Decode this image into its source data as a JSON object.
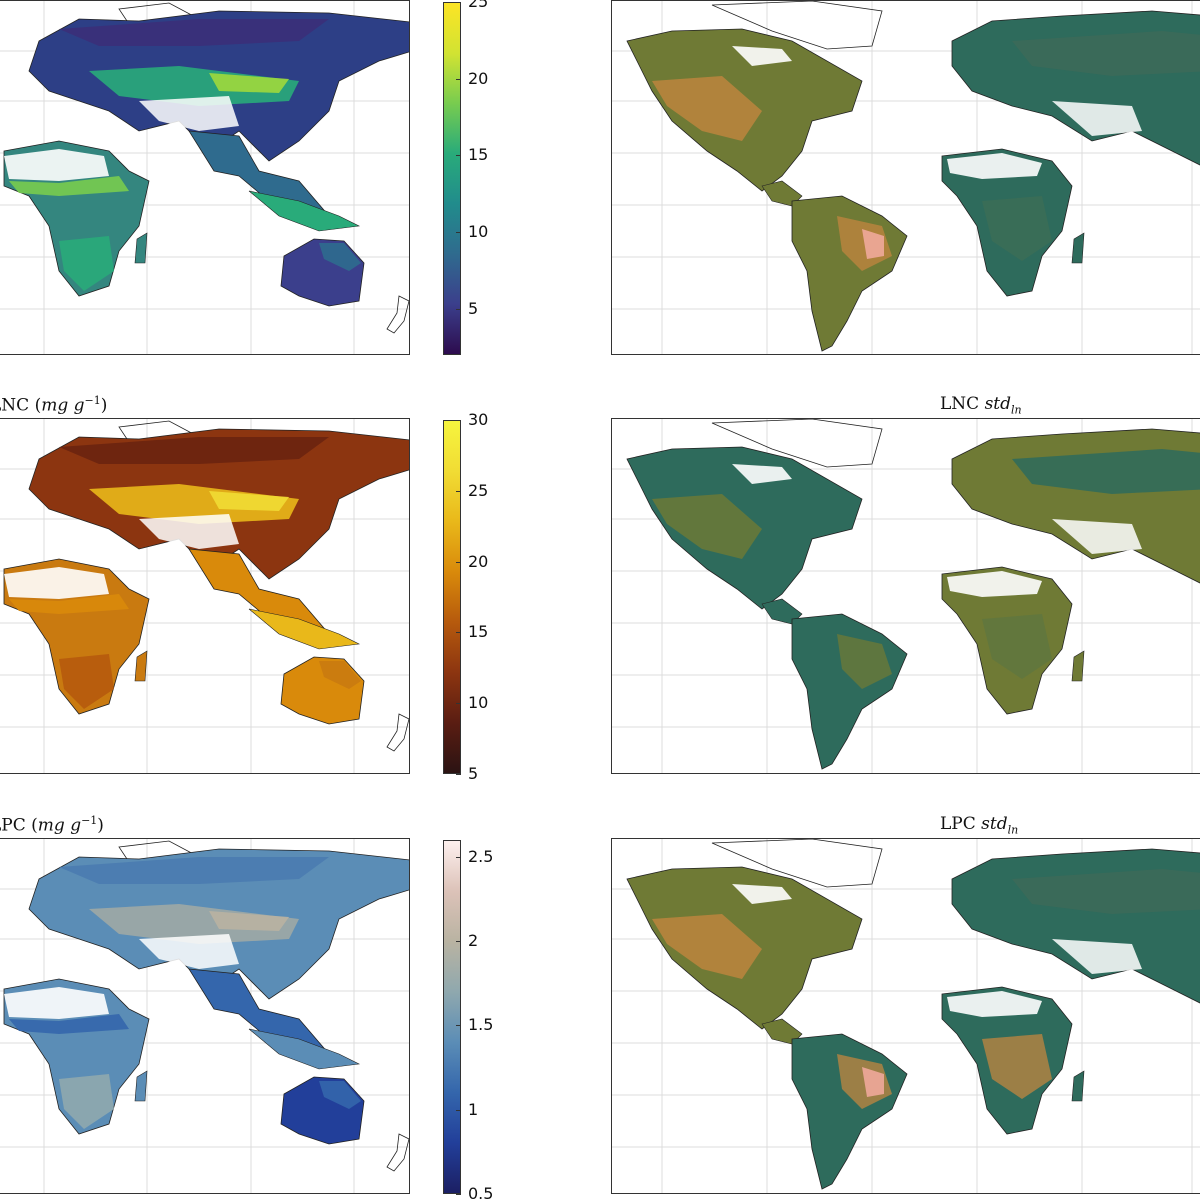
{
  "panels": [
    {
      "id": "lma",
      "title_prefix": "",
      "title_var": "",
      "colormap": [
        "#2d0c4e",
        "#3b3f8c",
        "#2f6b8e",
        "#218c8c",
        "#29ab7a",
        "#78cc4f",
        "#d2e332",
        "#fce425"
      ],
      "ticks": [
        "25",
        "20",
        "15",
        "10",
        "5"
      ],
      "tick_values": [
        25,
        20,
        15,
        10,
        5
      ],
      "range": [
        2,
        25
      ]
    },
    {
      "id": "lma-std",
      "title_prefix": "",
      "title_var": "",
      "colormap": [],
      "ticks": [],
      "tick_values": [],
      "range": []
    },
    {
      "id": "lnc",
      "title_prefix": "LNC (",
      "title_var": "mg g",
      "title_sup": "−1",
      "title_suffix": ")",
      "colormap": [
        "#2b1313",
        "#5a1d12",
        "#8c3510",
        "#b65a0d",
        "#d98a0b",
        "#e9b81a",
        "#f1dc34",
        "#f6f53e"
      ],
      "ticks": [
        "30",
        "25",
        "20",
        "15",
        "10",
        "5"
      ],
      "tick_values": [
        30,
        25,
        20,
        15,
        10,
        5
      ],
      "range": [
        5,
        30
      ]
    },
    {
      "id": "lnc-std",
      "title_prefix": "LNC ",
      "title_var": "std",
      "title_sub": "ln",
      "colormap": [],
      "ticks": [],
      "tick_values": [],
      "range": []
    },
    {
      "id": "lpc",
      "title_prefix": "LPC (",
      "title_var": "mg g",
      "title_sup": "−1",
      "title_suffix": ")",
      "colormap": [
        "#1c1f63",
        "#223f9a",
        "#3466ac",
        "#5b8db6",
        "#8fa8ae",
        "#b9b3a2",
        "#dcc2b8",
        "#fdf0ee"
      ],
      "ticks": [
        "2.5",
        "2",
        "1.5",
        "1",
        "0.5"
      ],
      "tick_values": [
        2.5,
        2,
        1.5,
        1,
        0.5
      ],
      "range": [
        0.5,
        2.6
      ]
    },
    {
      "id": "lpc-std",
      "title_prefix": "LPC ",
      "title_var": "std",
      "title_sub": "ln",
      "colormap": [],
      "ticks": [],
      "tick_values": [],
      "range": []
    }
  ],
  "colors": {
    "std_green": "#2e6b5c",
    "std_olive": "#6f7a35",
    "std_orange": "#c2863f",
    "std_pink": "#f0a99a"
  }
}
